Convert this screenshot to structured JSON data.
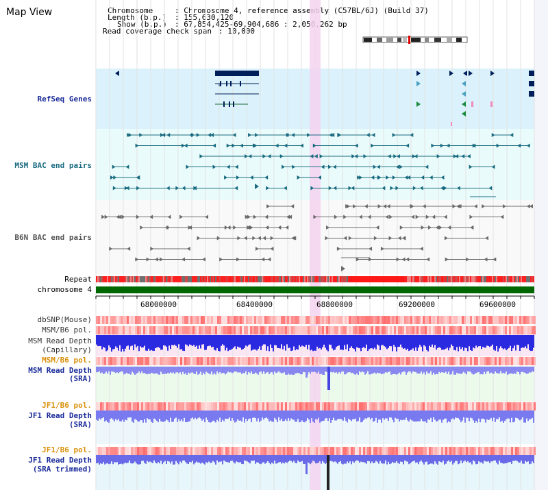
{
  "page_title": "Map View",
  "info": {
    "chromosome_key": "Chromosome",
    "chromosome_val": ": Chromosome 4, reference assembly (C57BL/6J) (Build 37)",
    "length_key": "Length (b.p.)",
    "length_val": ": 155,630,120",
    "show_key": "Show (b.p.)",
    "show_val": ": 67,854,425-69,904,686 : 2,050,262 bp",
    "read_key": "Read coverage check span",
    "read_val": ": 10,000"
  },
  "tracks": {
    "refseq": "RefSeq Genes",
    "msm_bac": "MSM BAC end pairs",
    "b6n_bac": "B6N BAC end pairs",
    "repeat": "Repeat",
    "chromosome": "chromosome 4",
    "dbsnp": "dbSNP(Mouse)",
    "msm_pol1": "MSM/B6 pol.",
    "msm_depth_cap_1": "MSM Read Depth",
    "msm_depth_cap_2": "(Capillary)",
    "msm_pol2": "MSM/B6 pol.",
    "msm_depth_sra_1": "MSM Read Depth",
    "msm_depth_sra_2": "(SRA)",
    "jf1_pol1": "JF1/B6 pol.",
    "jf1_depth_sra_1": "JF1 Read Depth",
    "jf1_depth_sra_2": "(SRA)",
    "jf1_pol2": "JF1/B6 pol.",
    "jf1_depth_trim_1": "JF1 Read Depth",
    "jf1_depth_trim_2": "(SRA trimmed)"
  },
  "axis_ticks": [
    "68000000",
    "68400000",
    "68800000",
    "69200000",
    "69600000"
  ],
  "colors": {
    "refseq_bg": "#dbf1fb",
    "bac_bg": "#e9fbfb",
    "navy": "#001f5a",
    "teal": "#1a6b80",
    "gray": "#6a6a6a",
    "chromosome": "#006600",
    "highlight": "#f4d4f0",
    "orange": "#d9900a",
    "blue_label": "#1a2b9a",
    "teal_label": "#1a6b80"
  }
}
